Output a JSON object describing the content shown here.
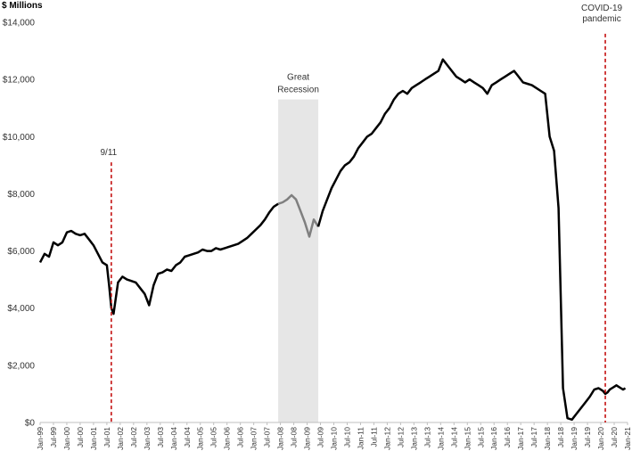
{
  "chart_data": {
    "type": "line",
    "title": "",
    "ylabel": "$ Millions",
    "xlabel": "",
    "ylim": [
      0,
      14000
    ],
    "y_ticks": [
      "$0",
      "$2,000",
      "$4,000",
      "$6,000",
      "$8,000",
      "$10,000",
      "$12,000",
      "$14,000"
    ],
    "y_tick_values": [
      0,
      2000,
      4000,
      6000,
      8000,
      10000,
      12000,
      14000
    ],
    "x_range": [
      "Jan-99",
      "Jan-21"
    ],
    "x_tick_labels": [
      "Jan-99",
      "Jul-99",
      "Jan-00",
      "Jul-00",
      "Jan-01",
      "Jul-01",
      "Jan-02",
      "Jul-02",
      "Jan-03",
      "Jul-03",
      "Jan-04",
      "Jul-04",
      "Jan-05",
      "Jul-05",
      "Jan-06",
      "Jul-06",
      "Jan-07",
      "Jul-07",
      "Jan-08",
      "Jul-08",
      "Jan-09",
      "Jul-09",
      "Jan-10",
      "Jul-10",
      "Jan-11",
      "Jul-11",
      "Jan-12",
      "Jul-12",
      "Jan-13",
      "Jul-13",
      "Jan-14",
      "Jul-14",
      "Jan-15",
      "Jul-15",
      "Jan-16",
      "Jul-16",
      "Jan-17",
      "Jul-17",
      "Jan-18",
      "Jul-18",
      "Jan-19",
      "Jul-19",
      "Jan-20",
      "Jul-20",
      "Jan-21"
    ],
    "grid": false,
    "line_color": "#000000",
    "recession_line_color": "#7f7f7f",
    "shade_color": "#e6e6e6",
    "marker_color": "#c00000",
    "series": [
      {
        "x": [
          "Jan-99",
          "Mar-99",
          "May-99",
          "Jul-99",
          "Sep-99",
          "Nov-99",
          "Jan-00",
          "Mar-00",
          "May-00",
          "Jul-00",
          "Sep-00",
          "Nov-00",
          "Jan-01",
          "Mar-01",
          "May-01",
          "Jul-01",
          "Aug-01",
          "Sep-01",
          "Oct-01",
          "Dec-01",
          "Feb-02",
          "Apr-02",
          "Jun-02",
          "Aug-02",
          "Oct-02",
          "Dec-02",
          "Feb-03",
          "Apr-03",
          "Jun-03",
          "Aug-03",
          "Oct-03",
          "Dec-03",
          "Feb-04",
          "Apr-04",
          "Jun-04",
          "Aug-04",
          "Oct-04",
          "Dec-04",
          "Feb-05",
          "Apr-05",
          "Jun-05",
          "Aug-05",
          "Oct-05",
          "Dec-05",
          "Feb-06",
          "Apr-06",
          "Jun-06",
          "Aug-06",
          "Oct-06",
          "Dec-06",
          "Feb-07",
          "Apr-07",
          "Jun-07",
          "Aug-07",
          "Oct-07",
          "Dec-07"
        ],
        "y": [
          5600,
          5900,
          5800,
          6300,
          6200,
          6300,
          6650,
          6700,
          6600,
          6550,
          6600,
          6400,
          6200,
          5900,
          5600,
          5500,
          4800,
          4000,
          3800,
          4900,
          5100,
          5000,
          4950,
          4900,
          4700,
          4500,
          4100,
          4800,
          5200,
          5250,
          5350,
          5300,
          5500,
          5600,
          5800,
          5850,
          5900,
          5950,
          6050,
          6000,
          6000,
          6100,
          6050,
          6100,
          6150,
          6200,
          6250,
          6350,
          6450,
          6600,
          6750,
          6900,
          7100,
          7350,
          7550,
          7650
        ]
      },
      {
        "x": [
          "Dec-07",
          "Feb-08",
          "Apr-08",
          "Jun-08",
          "Aug-08",
          "Oct-08",
          "Dec-08",
          "Feb-09",
          "Apr-09",
          "Jun-09"
        ],
        "y": [
          7650,
          7700,
          7800,
          7950,
          7800,
          7400,
          7000,
          6500,
          7100,
          6850
        ]
      },
      {
        "x": [
          "Jun-09",
          "Aug-09",
          "Oct-09",
          "Dec-09",
          "Feb-10",
          "Apr-10",
          "Jun-10",
          "Aug-10",
          "Oct-10",
          "Dec-10",
          "Feb-11",
          "Apr-11",
          "Jun-11",
          "Aug-11",
          "Oct-11",
          "Dec-11",
          "Feb-12",
          "Apr-12",
          "Jun-12",
          "Aug-12",
          "Oct-12",
          "Dec-12",
          "Feb-13",
          "Apr-13",
          "Jun-13",
          "Aug-13",
          "Oct-13",
          "Dec-13",
          "Feb-14",
          "Apr-14",
          "Jun-14",
          "Aug-14",
          "Oct-14",
          "Dec-14",
          "Feb-15",
          "Apr-15",
          "Jun-15",
          "Aug-15",
          "Oct-15",
          "Dec-15",
          "Feb-16",
          "Apr-16",
          "Jun-16",
          "Aug-16",
          "Oct-16",
          "Dec-16",
          "Feb-17",
          "Apr-17",
          "Jun-17",
          "Aug-17",
          "Oct-17",
          "Dec-17",
          "Feb-18",
          "Apr-18",
          "Jun-18",
          "Aug-18",
          "Oct-18",
          "Dec-18",
          "Feb-19",
          "Apr-19",
          "Jun-19",
          "Aug-19",
          "Oct-19",
          "Dec-19",
          "Jan-20",
          "Feb-20",
          "Mar-20",
          "Apr-20",
          "May-20",
          "Jun-20",
          "Jul-20",
          "Aug-20",
          "Sep-20",
          "Oct-20",
          "Nov-20",
          "Dec-20"
        ],
        "y": [
          6850,
          7400,
          7800,
          8200,
          8500,
          8800,
          9000,
          9100,
          9300,
          9600,
          9800,
          10000,
          10100,
          10300,
          10500,
          10800,
          11000,
          11300,
          11500,
          11600,
          11500,
          11700,
          11800,
          11900,
          12000,
          12100,
          12200,
          12300,
          12700,
          12500,
          12300,
          12100,
          12000,
          11900,
          12000,
          11900,
          11800,
          11700,
          11500,
          11800,
          11900,
          12000,
          12100,
          12200,
          12300,
          12100,
          11900,
          11850,
          11800,
          11700,
          11600,
          11500,
          10000,
          9500,
          7500,
          1200,
          150,
          100,
          300,
          500,
          700,
          900,
          1150,
          1200,
          1150,
          1100,
          1000,
          1050,
          1150,
          1200,
          1250,
          1300,
          1250,
          1200,
          1150,
          1200
        ]
      }
    ],
    "shaded_region": {
      "start": "Dec-07",
      "end": "Jun-09"
    },
    "annotations": [
      {
        "label": "9/11",
        "x": "Sep-01"
      },
      {
        "label": "Great Recession",
        "x": "Sep-08"
      },
      {
        "label": "COVID-19 pandemic",
        "x": "Mar-20"
      }
    ],
    "annotation_text": {
      "nine_eleven": "9/11",
      "recession_line1": "Great",
      "recession_line2": "Recession",
      "covid_line1": "COVID-19",
      "covid_line2": "pandemic"
    }
  }
}
